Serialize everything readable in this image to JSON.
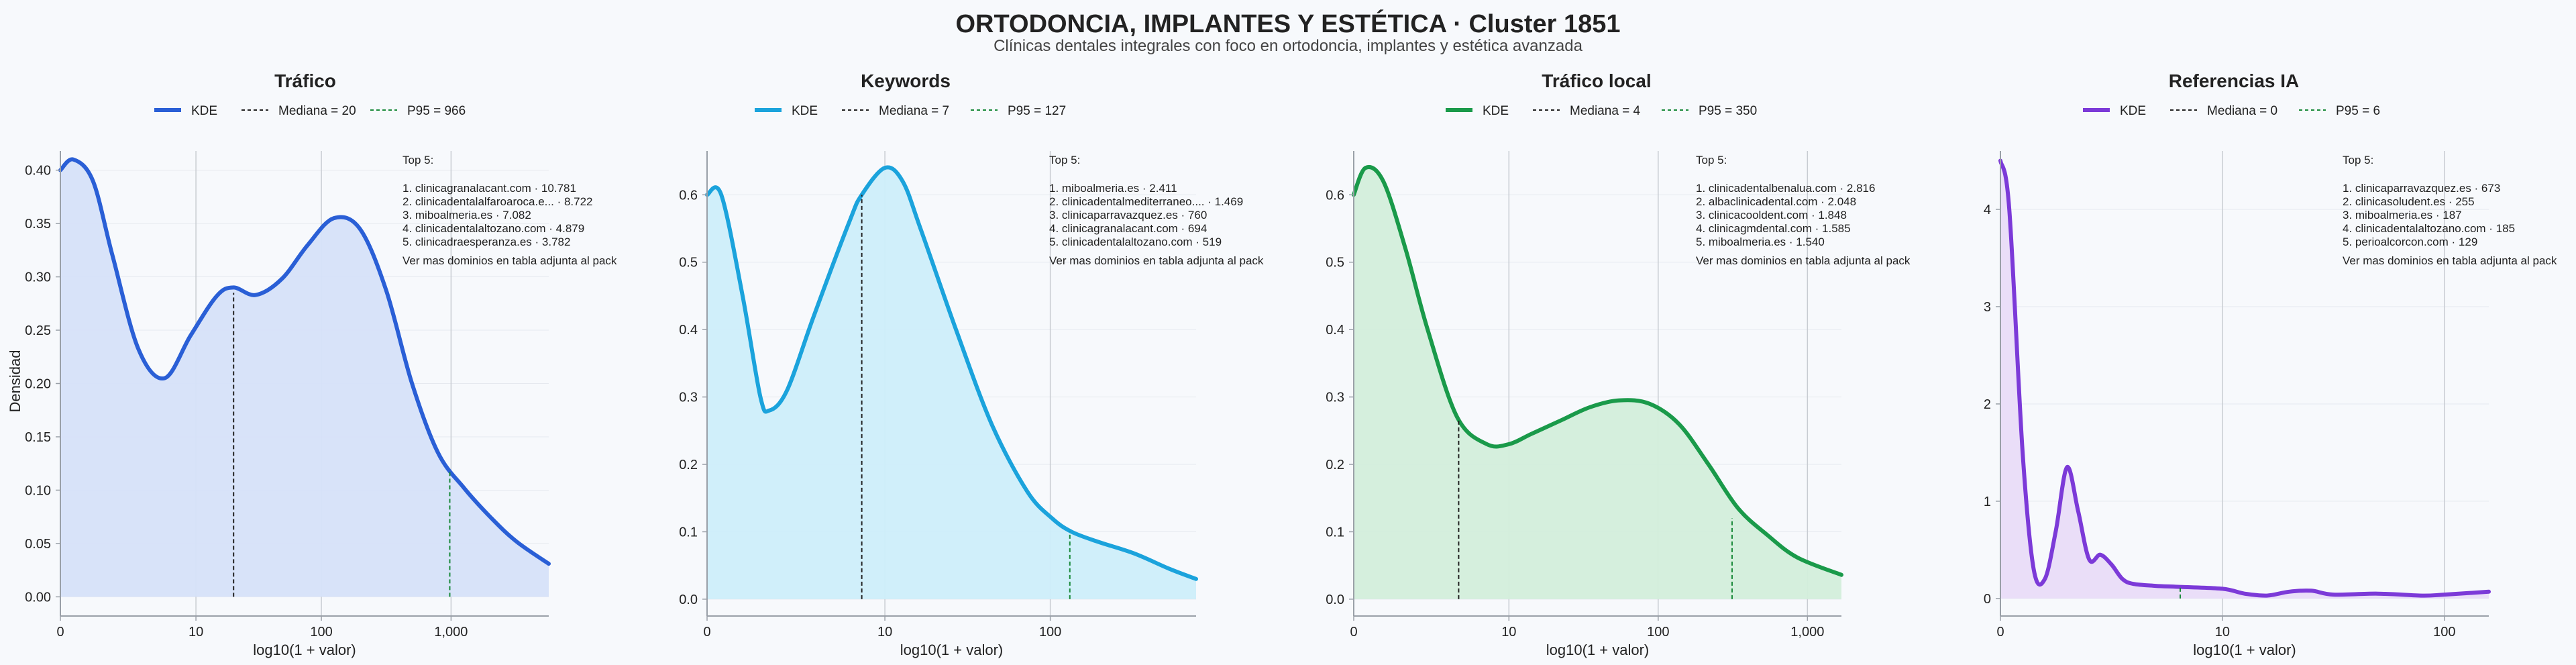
{
  "title": "ORTODONCIA, IMPLANTES Y ESTÉTICA · Cluster 1851",
  "subtitle": "Clínicas dentales integrales con foco en ortodoncia, implantes y estética avanzada",
  "shared_y_label": "Densidad",
  "chart_data": [
    {
      "type": "area",
      "title": "Tráfico",
      "xlabel": "log10(1 + valor)",
      "ylabel": "Densidad",
      "color": "#2a5fd6",
      "fill": "#d6e2f9",
      "x_domain": [
        0,
        3.75
      ],
      "ylim": [
        -0.018,
        0.418
      ],
      "x_ticks": [
        {
          "v": 0,
          "label": "0"
        },
        {
          "v": 1.041,
          "label": "10"
        },
        {
          "v": 2.004,
          "label": "100"
        },
        {
          "v": 3.0,
          "label": "1,000"
        }
      ],
      "y_ticks": [
        {
          "v": 0,
          "label": "0.00"
        },
        {
          "v": 0.05,
          "label": "0.05"
        },
        {
          "v": 0.1,
          "label": "0.10"
        },
        {
          "v": 0.15,
          "label": "0.15"
        },
        {
          "v": 0.2,
          "label": "0.20"
        },
        {
          "v": 0.25,
          "label": "0.25"
        },
        {
          "v": 0.3,
          "label": "0.30"
        },
        {
          "v": 0.35,
          "label": "0.35"
        },
        {
          "v": 0.4,
          "label": "0.40"
        }
      ],
      "series": [
        {
          "name": "KDE",
          "x": [
            0,
            0.1,
            0.25,
            0.4,
            0.6,
            0.8,
            1.0,
            1.2,
            1.33,
            1.5,
            1.7,
            1.9,
            2.1,
            2.3,
            2.5,
            2.7,
            2.9,
            3.1,
            3.3,
            3.5,
            3.75
          ],
          "y": [
            0.4,
            0.41,
            0.39,
            0.32,
            0.232,
            0.205,
            0.245,
            0.282,
            0.29,
            0.283,
            0.298,
            0.33,
            0.355,
            0.345,
            0.288,
            0.2,
            0.135,
            0.102,
            0.075,
            0.052,
            0.031
          ]
        }
      ],
      "reference_lines": [
        {
          "name": "Mediana = 20",
          "x": 1.33,
          "y": 0.285,
          "style": "black-dashed"
        },
        {
          "name": "P95 = 966",
          "x": 2.99,
          "y": 0.118,
          "style": "green-dashed"
        }
      ],
      "top5": {
        "heading": "Top 5:",
        "items": [
          "1. clinicagranalacant.com · 10.781",
          "2. clinicadentalalfaroaroca.e... · 8.722",
          "3. miboalmeria.es · 7.082",
          "4. clinicadentalaltozano.com · 4.879",
          "5. clinicadraesperanza.es · 3.782"
        ],
        "note": "Ver mas dominios en tabla adjunta al pack"
      }
    },
    {
      "type": "area",
      "title": "Keywords",
      "xlabel": "log10(1 + valor)",
      "ylabel": "",
      "color": "#1ba3dc",
      "fill": "#cdeefa",
      "x_domain": [
        0,
        2.75
      ],
      "ylim": [
        -0.025,
        0.665
      ],
      "x_ticks": [
        {
          "v": 0,
          "label": "0"
        },
        {
          "v": 1.0,
          "label": "10"
        },
        {
          "v": 1.93,
          "label": "100"
        }
      ],
      "y_ticks": [
        {
          "v": 0,
          "label": "0.0"
        },
        {
          "v": 0.1,
          "label": "0.1"
        },
        {
          "v": 0.2,
          "label": "0.2"
        },
        {
          "v": 0.3,
          "label": "0.3"
        },
        {
          "v": 0.4,
          "label": "0.4"
        },
        {
          "v": 0.5,
          "label": "0.5"
        },
        {
          "v": 0.6,
          "label": "0.6"
        }
      ],
      "series": [
        {
          "name": "KDE",
          "x": [
            0,
            0.08,
            0.2,
            0.3,
            0.35,
            0.45,
            0.6,
            0.8,
            0.87,
            1.0,
            1.1,
            1.2,
            1.4,
            1.6,
            1.8,
            1.94,
            2.05,
            2.2,
            2.4,
            2.6,
            2.75
          ],
          "y": [
            0.6,
            0.6,
            0.45,
            0.3,
            0.28,
            0.31,
            0.42,
            0.56,
            0.6,
            0.64,
            0.62,
            0.55,
            0.4,
            0.26,
            0.16,
            0.12,
            0.1,
            0.085,
            0.068,
            0.045,
            0.03
          ]
        }
      ],
      "reference_lines": [
        {
          "name": "Mediana = 7",
          "x": 0.87,
          "y": 0.6,
          "style": "black-dashed"
        },
        {
          "name": "P95 = 127",
          "x": 2.04,
          "y": 0.1,
          "style": "green-dashed"
        }
      ],
      "top5": {
        "heading": "Top 5:",
        "items": [
          "1. miboalmeria.es · 2.411",
          "2. clinicadentalmediterraneo.... · 1.469",
          "3. clinicaparravazquez.es · 760",
          "4. clinicagranalacant.com · 694",
          "5. clinicadentalaltozano.com · 519"
        ],
        "note": "Ver mas dominios en tabla adjunta al pack"
      }
    },
    {
      "type": "area",
      "title": "Tráfico local",
      "xlabel": "log10(1 + valor)",
      "ylabel": "",
      "color": "#1a9a4a",
      "fill": "#d3eedb",
      "x_domain": [
        0,
        3.3
      ],
      "ylim": [
        -0.025,
        0.665
      ],
      "x_ticks": [
        {
          "v": 0,
          "label": "0"
        },
        {
          "v": 1.05,
          "label": "10"
        },
        {
          "v": 2.06,
          "label": "100"
        },
        {
          "v": 3.07,
          "label": "1,000"
        }
      ],
      "y_ticks": [
        {
          "v": 0,
          "label": "0.0"
        },
        {
          "v": 0.1,
          "label": "0.1"
        },
        {
          "v": 0.2,
          "label": "0.2"
        },
        {
          "v": 0.3,
          "label": "0.3"
        },
        {
          "v": 0.4,
          "label": "0.4"
        },
        {
          "v": 0.5,
          "label": "0.5"
        },
        {
          "v": 0.6,
          "label": "0.6"
        }
      ],
      "series": [
        {
          "name": "KDE",
          "x": [
            0,
            0.08,
            0.2,
            0.35,
            0.5,
            0.7,
            0.9,
            1.05,
            1.2,
            1.4,
            1.6,
            1.8,
            2.0,
            2.2,
            2.4,
            2.6,
            2.8,
            3.0,
            3.3
          ],
          "y": [
            0.6,
            0.64,
            0.62,
            0.52,
            0.4,
            0.27,
            0.23,
            0.23,
            0.245,
            0.265,
            0.285,
            0.295,
            0.29,
            0.26,
            0.2,
            0.135,
            0.095,
            0.062,
            0.036
          ]
        }
      ],
      "reference_lines": [
        {
          "name": "Mediana = 4",
          "x": 0.71,
          "y": 0.265,
          "style": "black-dashed"
        },
        {
          "name": "P95 = 350",
          "x": 2.56,
          "y": 0.12,
          "style": "green-dashed"
        }
      ],
      "top5": {
        "heading": "Top 5:",
        "items": [
          "1. clinicadentalbenalua.com · 2.816",
          "2. albaclinicadental.com · 2.048",
          "3. clinicacooldent.com · 1.848",
          "4. clinicagmdental.com · 1.585",
          "5. miboalmeria.es · 1.540"
        ],
        "note": "Ver mas dominios en tabla adjunta al pack"
      }
    },
    {
      "type": "area",
      "title": "Referencias IA",
      "xlabel": "log10(1 + valor)",
      "ylabel": "",
      "color": "#7c3ad8",
      "fill": "#e9dcf8",
      "x_domain": [
        0,
        2.2
      ],
      "ylim": [
        -0.18,
        4.6
      ],
      "x_ticks": [
        {
          "v": 0,
          "label": "0"
        },
        {
          "v": 1.0,
          "label": "10"
        },
        {
          "v": 2.0,
          "label": "100"
        }
      ],
      "y_ticks": [
        {
          "v": 0,
          "label": "0"
        },
        {
          "v": 1,
          "label": "1"
        },
        {
          "v": 2,
          "label": "2"
        },
        {
          "v": 3,
          "label": "3"
        },
        {
          "v": 4,
          "label": "4"
        }
      ],
      "series": [
        {
          "name": "KDE",
          "x": [
            0,
            0.04,
            0.1,
            0.15,
            0.2,
            0.25,
            0.3,
            0.35,
            0.4,
            0.45,
            0.5,
            0.55,
            0.6,
            0.7,
            0.8,
            1.0,
            1.1,
            1.2,
            1.3,
            1.4,
            1.5,
            1.7,
            1.9,
            2.0,
            2.2
          ],
          "y": [
            4.5,
            4.0,
            1.5,
            0.3,
            0.2,
            0.7,
            1.35,
            0.9,
            0.4,
            0.45,
            0.35,
            0.2,
            0.15,
            0.13,
            0.12,
            0.1,
            0.05,
            0.03,
            0.07,
            0.08,
            0.04,
            0.05,
            0.03,
            0.04,
            0.07
          ]
        }
      ],
      "reference_lines": [
        {
          "name": "Mediana = 0",
          "x": 0.0,
          "y": 4.5,
          "style": "black-dashed"
        },
        {
          "name": "P95 = 6",
          "x": 0.81,
          "y": 0.12,
          "style": "green-dashed"
        }
      ],
      "top5": {
        "heading": "Top 5:",
        "items": [
          "1. clinicaparravazquez.es · 673",
          "2. clinicasoludent.es · 255",
          "3. miboalmeria.es · 187",
          "4. clinicadentalaltozano.com · 185",
          "5. perioalcorcon.com · 129"
        ],
        "note": "Ver mas dominios en tabla adjunta al pack"
      }
    }
  ]
}
